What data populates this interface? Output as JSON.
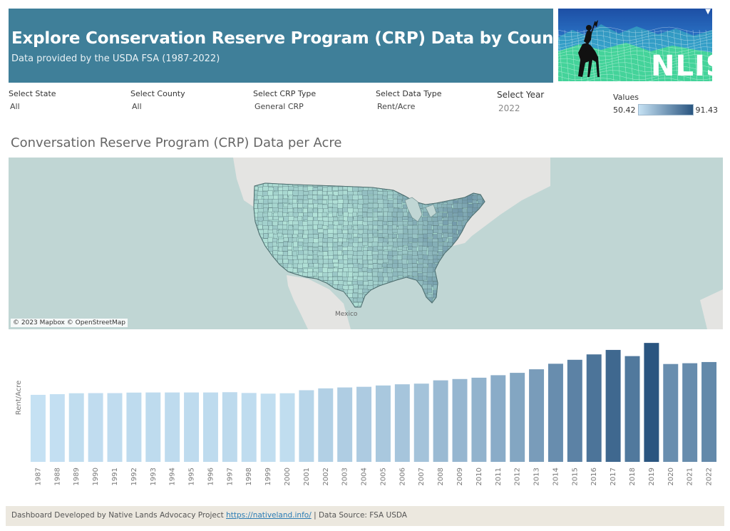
{
  "header": {
    "title": "Explore Conservation Reserve Program (CRP) Data by County",
    "subtitle": "Data provided by the USDA FSA (1987-2022)"
  },
  "logo": {
    "text": "NLIS"
  },
  "filters": [
    {
      "label": "Select State",
      "value": "All"
    },
    {
      "label": "Select County",
      "value": "All"
    },
    {
      "label": "Select CRP Type",
      "value": "General CRP"
    },
    {
      "label": "Select Data Type",
      "value": "Rent/Acre"
    },
    {
      "label": "Select Year",
      "value": "2022"
    }
  ],
  "legend": {
    "label": "Values",
    "min": "50.42",
    "max": "91.43",
    "color_low": "#c5e1f3",
    "color_high": "#2a5580"
  },
  "map": {
    "title": "Conversation Reserve Program (CRP) Data per Acre",
    "attribution": "© 2023 Mapbox © OpenStreetMap",
    "label_mexico": "Mexico"
  },
  "chart_data": {
    "type": "bar",
    "ylabel": "Rent/Acre",
    "xlabel": "",
    "categories": [
      "1987",
      "1988",
      "1989",
      "1990",
      "1991",
      "1992",
      "1993",
      "1994",
      "1995",
      "1996",
      "1997",
      "1998",
      "1999",
      "2000",
      "2001",
      "2002",
      "2003",
      "2004",
      "2005",
      "2006",
      "2007",
      "2008",
      "2009",
      "2010",
      "2011",
      "2012",
      "2013",
      "2014",
      "2015",
      "2016",
      "2017",
      "2018",
      "2019",
      "2020",
      "2021",
      "2022"
    ],
    "values": [
      50.9,
      51.4,
      52.1,
      52.2,
      52.2,
      52.6,
      52.7,
      52.7,
      52.7,
      52.7,
      52.9,
      52.3,
      51.8,
      52.1,
      54.4,
      55.8,
      56.5,
      57.0,
      58.0,
      58.9,
      59.4,
      61.9,
      62.9,
      63.9,
      65.8,
      67.6,
      70.3,
      74.5,
      77.5,
      81.6,
      85.0,
      80.3,
      90.3,
      74.3,
      74.9,
      75.8
    ],
    "color_low": "#c5e1f3",
    "color_high": "#2a5580",
    "ylim": [
      0,
      92
    ]
  },
  "footer": {
    "prefix": "Dashboard Developed by Native Lands Advocacy Project ",
    "link": "https://nativeland.info/",
    "suffix": " | Data Source: FSA USDA"
  }
}
